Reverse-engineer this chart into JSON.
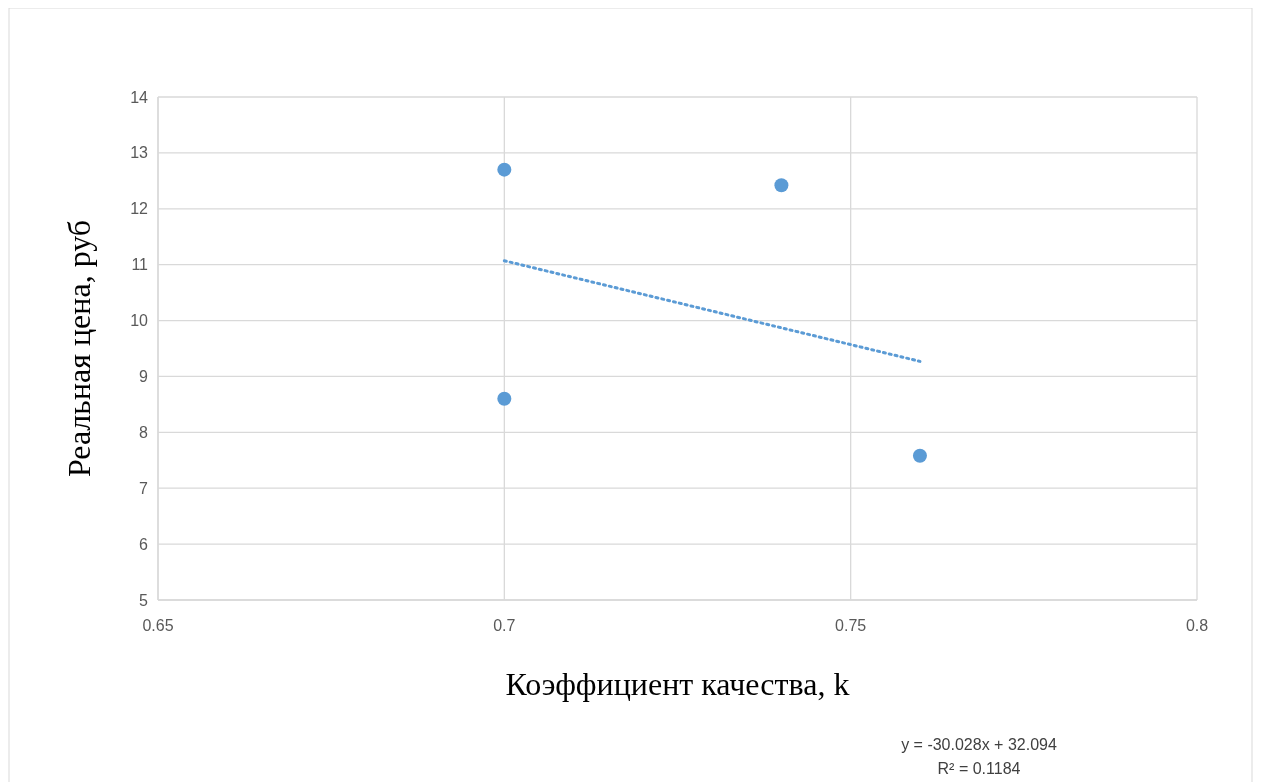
{
  "chart_data": {
    "type": "scatter",
    "xlabel": "Коэффициент качества, k",
    "ylabel": "Реальная цена, руб",
    "xlim": [
      0.65,
      0.8
    ],
    "xticks": [
      0.65,
      0.7,
      0.75,
      0.8
    ],
    "ylim": [
      5,
      14
    ],
    "yticks": [
      5,
      6,
      7,
      8,
      9,
      10,
      11,
      12,
      13,
      14
    ],
    "grid": true,
    "marker": "circle",
    "series": [
      {
        "color": "#5b9bd5",
        "x": [
          0.7,
          0.74,
          0.7,
          0.76
        ],
        "values": [
          12.7,
          12.42,
          8.6,
          7.58
        ]
      },
      {
        "type": "line",
        "color": "#5b9bd5",
        "x": [
          0.7,
          0.76
        ],
        "values": [
          11.07,
          9.27
        ],
        "line_style": "dotted",
        "marker": "none"
      }
    ],
    "annotations": [
      "y = -30.028x + 32.094",
      "R² = 0.1184"
    ]
  }
}
